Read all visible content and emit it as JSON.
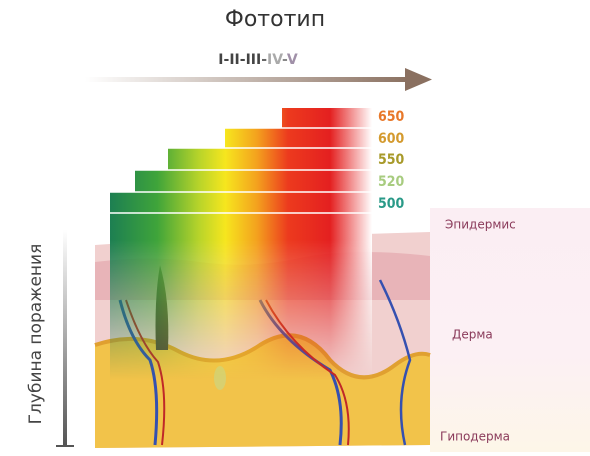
{
  "title": "Фототип",
  "phototypes": [
    "I",
    "II",
    "III",
    "IV",
    "V"
  ],
  "separator": "-",
  "wavelengths": [
    650,
    600,
    550,
    520,
    500
  ],
  "layers": [
    "Эпидермис",
    "Дерма",
    "Гиподерма"
  ],
  "axis_label": "Глубина поражения"
}
